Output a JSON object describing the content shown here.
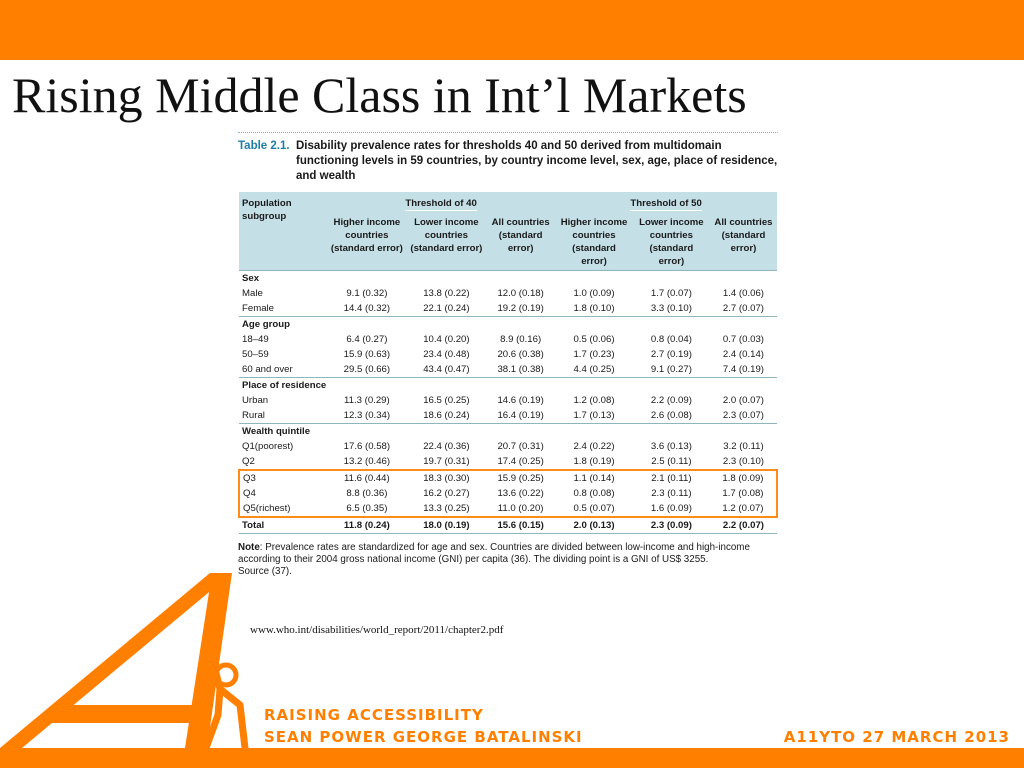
{
  "slide": {
    "title": "Rising Middle Class in Int’l Markets",
    "source_url": "www.who.int/disabilities/world_report/2011/chapter2.pdf"
  },
  "table": {
    "label": "Table 2.1.",
    "caption": "Disability prevalence rates for thresholds 40 and 50 derived from multidomain functioning levels in 59 countries, by country income level, sex, age, place of residence, and wealth",
    "header": {
      "subgroup": "Population subgroup",
      "threshold_40": "Threshold of 40",
      "threshold_50": "Threshold of 50",
      "t40_cols": [
        "Higher income countries (standard error)",
        "Lower income countries (standard error)",
        "All countries (standard error)"
      ],
      "t50_cols": [
        "Higher income countries (standard error)",
        "Lower income countries (standard error)",
        "All countries (standard error)"
      ]
    },
    "sections": [
      {
        "title": "Sex",
        "rows": [
          {
            "label": "Male",
            "values": [
              "9.1 (0.32)",
              "13.8 (0.22)",
              "12.0 (0.18)",
              "1.0 (0.09)",
              "1.7 (0.07)",
              "1.4 (0.06)"
            ]
          },
          {
            "label": "Female",
            "values": [
              "14.4 (0.32)",
              "22.1 (0.24)",
              "19.2 (0.19)",
              "1.8 (0.10)",
              "3.3 (0.10)",
              "2.7 (0.07)"
            ]
          }
        ]
      },
      {
        "title": "Age group",
        "rows": [
          {
            "label": "18–49",
            "values": [
              "6.4 (0.27)",
              "10.4 (0.20)",
              "8.9 (0.16)",
              "0.5 (0.06)",
              "0.8 (0.04)",
              "0.7 (0.03)"
            ]
          },
          {
            "label": "50–59",
            "values": [
              "15.9 (0.63)",
              "23.4 (0.48)",
              "20.6 (0.38)",
              "1.7 (0.23)",
              "2.7 (0.19)",
              "2.4 (0.14)"
            ]
          },
          {
            "label": "60 and over",
            "values": [
              "29.5 (0.66)",
              "43.4 (0.47)",
              "38.1 (0.38)",
              "4.4 (0.25)",
              "9.1 (0.27)",
              "7.4 (0.19)"
            ]
          }
        ]
      },
      {
        "title": "Place of residence",
        "rows": [
          {
            "label": "Urban",
            "values": [
              "11.3 (0.29)",
              "16.5 (0.25)",
              "14.6 (0.19)",
              "1.2 (0.08)",
              "2.2 (0.09)",
              "2.0 (0.07)"
            ]
          },
          {
            "label": "Rural",
            "values": [
              "12.3 (0.34)",
              "18.6 (0.24)",
              "16.4 (0.19)",
              "1.7 (0.13)",
              "2.6 (0.08)",
              "2.3 (0.07)"
            ]
          }
        ]
      },
      {
        "title": "Wealth quintile",
        "rows": [
          {
            "label": "Q1(poorest)",
            "values": [
              "17.6 (0.58)",
              "22.4 (0.36)",
              "20.7 (0.31)",
              "2.4 (0.22)",
              "3.6 (0.13)",
              "3.2 (0.11)"
            ]
          },
          {
            "label": "Q2",
            "values": [
              "13.2 (0.46)",
              "19.7 (0.31)",
              "17.4 (0.25)",
              "1.8 (0.19)",
              "2.5 (0.11)",
              "2.3 (0.10)"
            ]
          },
          {
            "label": "Q3",
            "values": [
              "11.6 (0.44)",
              "18.3 (0.30)",
              "15.9 (0.25)",
              "1.1 (0.14)",
              "2.1 (0.11)",
              "1.8 (0.09)"
            ]
          },
          {
            "label": "Q4",
            "values": [
              "8.8 (0.36)",
              "16.2 (0.27)",
              "13.6 (0.22)",
              "0.8 (0.08)",
              "2.3 (0.11)",
              "1.7 (0.08)"
            ]
          },
          {
            "label": "Q5(richest)",
            "values": [
              "6.5 (0.35)",
              "13.3 (0.25)",
              "11.0 (0.20)",
              "0.5 (0.07)",
              "1.6 (0.09)",
              "1.2 (0.07)"
            ]
          }
        ]
      }
    ],
    "total": {
      "label": "Total",
      "values": [
        "11.8 (0.24)",
        "18.0 (0.19)",
        "15.6 (0.15)",
        "2.0 (0.13)",
        "2.3 (0.09)",
        "2.2 (0.07)"
      ]
    },
    "note": {
      "label": "Note",
      "text": ": Prevalence rates are standardized for age and sex. Countries are divided between low-income and high-income according to their 2004 gross national income (GNI) per capita (36). The dividing point is a GNI of US$ 3255.",
      "source": "Source (37)."
    }
  },
  "footer": {
    "line1": "RAISING ACCESSIBILITY",
    "line2": "SEAN POWER GEORGE BATALINSKI",
    "right": "A11YTO 27 MARCH 2013"
  },
  "colors": {
    "brand_orange": "#ff7f00",
    "table_header": "#c4dfe6",
    "caption_blue": "#1f7ea6",
    "highlight": "#ff8c1a"
  },
  "logo": {
    "icon": "accessibility-a-figure-logo"
  }
}
